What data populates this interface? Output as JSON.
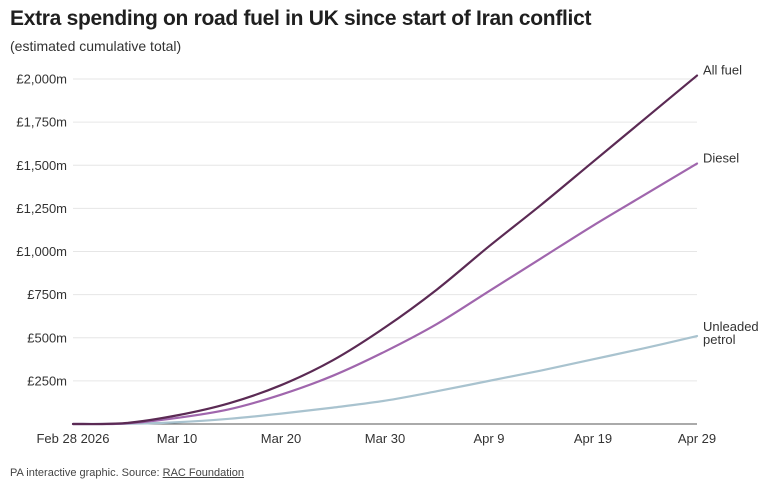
{
  "title": "Extra spending on road fuel in UK since start of Iran conflict",
  "subtitle": "(estimated cumulative total)",
  "footer": {
    "text": "PA interactive graphic. Source: ",
    "source_link": "RAC Foundation"
  },
  "colors": {
    "all_fuel": "#5b2a54",
    "diesel": "#a066ad",
    "unleaded": "#a9c3cf",
    "grid": "#e6e6e6",
    "baseline": "#555555"
  },
  "chart_data": {
    "type": "line",
    "title": "Extra spending on road fuel in UK since start of Iran conflict",
    "subtitle": "(estimated cumulative total)",
    "xlabel": "",
    "ylabel": "",
    "x": [
      "Feb 28 2026",
      "Mar 5",
      "Mar 10",
      "Mar 15",
      "Mar 20",
      "Mar 25",
      "Mar 30",
      "Apr 4",
      "Apr 9",
      "Apr 14",
      "Apr 19",
      "Apr 24",
      "Apr 29"
    ],
    "x_day_index": [
      0,
      5,
      10,
      15,
      20,
      25,
      30,
      35,
      40,
      45,
      50,
      55,
      60
    ],
    "x_ticks": [
      "Feb 28 2026",
      "Mar 10",
      "Mar 20",
      "Mar 30",
      "Apr 9",
      "Apr 19",
      "Apr 29"
    ],
    "x_tick_day_index": [
      0,
      10,
      20,
      30,
      40,
      50,
      60
    ],
    "y_ticks": [
      250,
      500,
      750,
      1000,
      1250,
      1500,
      1750,
      2000
    ],
    "y_tick_labels": [
      "£250m",
      "£500m",
      "£750m",
      "£1,000m",
      "£1,250m",
      "£1,500m",
      "£1,750m",
      "£2,000m"
    ],
    "ylim": [
      0,
      2000
    ],
    "grid": true,
    "series": [
      {
        "name": "All fuel",
        "key": "all_fuel",
        "values": [
          0,
          5,
          50,
          120,
          225,
          370,
          560,
          780,
          1030,
          1270,
          1520,
          1770,
          2020
        ]
      },
      {
        "name": "Diesel",
        "key": "diesel",
        "values": [
          0,
          3,
          35,
          85,
          170,
          280,
          420,
          580,
          770,
          960,
          1150,
          1330,
          1510
        ]
      },
      {
        "name": "Unleaded petrol",
        "label_lines": [
          "Unleaded",
          "petrol"
        ],
        "key": "unleaded",
        "values": [
          0,
          1,
          10,
          30,
          60,
          95,
          135,
          190,
          250,
          310,
          375,
          440,
          510
        ]
      }
    ]
  }
}
